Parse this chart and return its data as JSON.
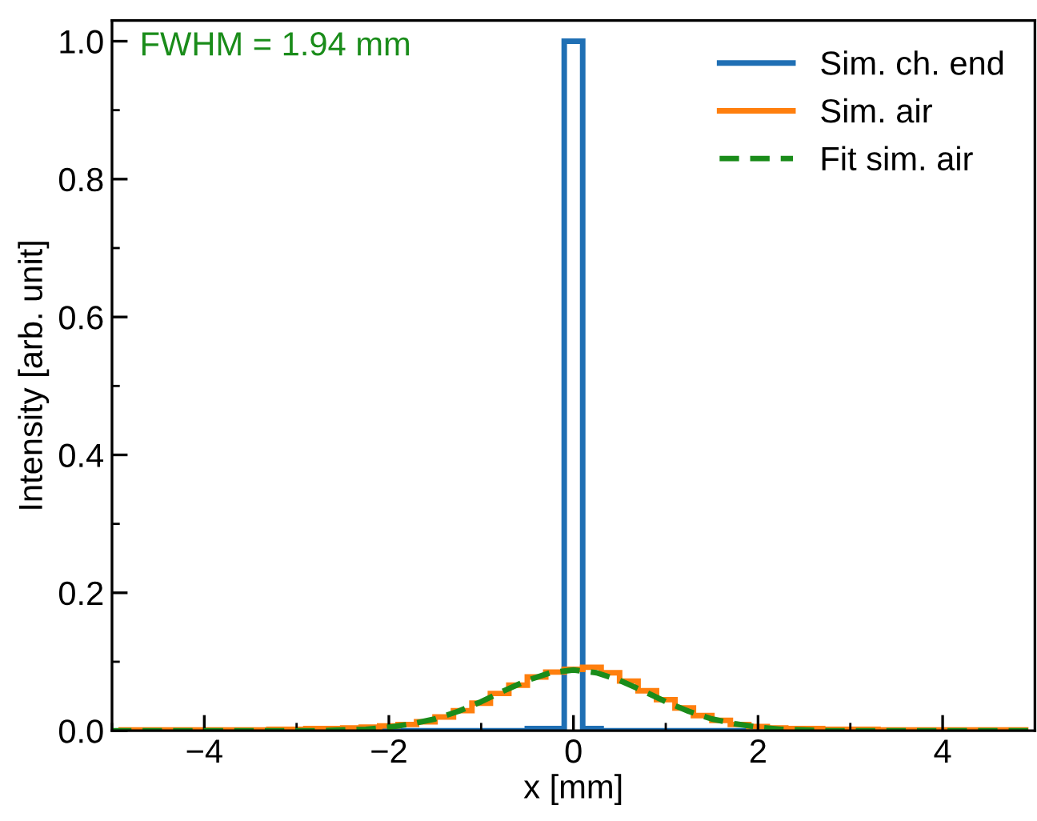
{
  "chart_data": {
    "type": "histogram",
    "xlabel": "x [mm]",
    "ylabel": "Intensity [arb. unit]",
    "bins": [
      -4.9,
      -4.7,
      -4.5,
      -4.3,
      -4.1,
      -3.9,
      -3.7,
      -3.5,
      -3.3,
      -3.1,
      -2.9,
      -2.7,
      -2.5,
      -2.3,
      -2.1,
      -1.9,
      -1.7,
      -1.5,
      -1.3,
      -1.1,
      -0.9,
      -0.7,
      -0.5,
      -0.3,
      -0.1,
      0.1,
      0.3,
      0.5,
      0.7,
      0.9,
      1.1,
      1.3,
      1.5,
      1.7,
      1.9,
      2.1,
      2.3,
      2.5,
      2.7,
      2.9,
      3.1,
      3.3,
      3.5,
      3.7,
      3.9,
      4.1,
      4.3,
      4.5,
      4.7,
      4.9
    ],
    "series": [
      {
        "name": "Sim. ch. end",
        "color": "#1f6fb4",
        "values": [
          0,
          0,
          0,
          0,
          0,
          0,
          0,
          0,
          0,
          0,
          0,
          0,
          0,
          0,
          0,
          0,
          0,
          0,
          0,
          0,
          0,
          0,
          0.003,
          0.003,
          1.0,
          0.003,
          0,
          0,
          0,
          0,
          0,
          0,
          0,
          0,
          0,
          0,
          0,
          0,
          0,
          0,
          0,
          0,
          0,
          0,
          0,
          0,
          0,
          0,
          0
        ]
      },
      {
        "name": "Sim. air",
        "color": "#ff7f0e",
        "values": [
          0.001,
          0.001,
          0.001,
          0.001,
          0.001,
          0.001,
          0.001,
          0.001,
          0.002,
          0.002,
          0.003,
          0.003,
          0.004,
          0.005,
          0.007,
          0.009,
          0.013,
          0.02,
          0.029,
          0.04,
          0.054,
          0.066,
          0.078,
          0.085,
          0.089,
          0.092,
          0.084,
          0.072,
          0.058,
          0.045,
          0.033,
          0.022,
          0.015,
          0.009,
          0.006,
          0.004,
          0.003,
          0.003,
          0.002,
          0.002,
          0.002,
          0.001,
          0.001,
          0.001,
          0.001,
          0.001,
          0.001,
          0.001,
          0.001
        ]
      },
      {
        "name": "Fit sim. air",
        "type": "line",
        "color": "#1a8c1a",
        "line_style": "dashed",
        "x": [
          -5,
          -4.75,
          -4.5,
          -4.25,
          -4,
          -3.75,
          -3.5,
          -3.25,
          -3,
          -2.75,
          -2.5,
          -2.25,
          -2,
          -1.75,
          -1.5,
          -1.25,
          -1,
          -0.75,
          -0.5,
          -0.25,
          0,
          0.25,
          0.5,
          0.75,
          1,
          1.25,
          1.5,
          1.75,
          2,
          2.25,
          2.5,
          2.75,
          3,
          3.25,
          3.5,
          3.75,
          4,
          4.25,
          4.5,
          4.75,
          5
        ],
        "values": [
          0,
          0,
          0,
          0,
          0,
          0,
          0,
          0,
          0,
          0,
          0.001,
          0.002,
          0.005,
          0.01,
          0.017,
          0.028,
          0.042,
          0.058,
          0.073,
          0.084,
          0.088,
          0.084,
          0.073,
          0.058,
          0.042,
          0.028,
          0.017,
          0.01,
          0.005,
          0.002,
          0.001,
          0,
          0,
          0,
          0,
          0,
          0,
          0,
          0,
          0,
          0
        ]
      }
    ],
    "xlim": [
      -5,
      5
    ],
    "xticks": [
      {
        "value": -4,
        "label": "−4"
      },
      {
        "value": -2,
        "label": "−2"
      },
      0,
      2,
      4
    ],
    "ylim": [
      0,
      1.03
    ],
    "yticks": [
      {
        "value": 0,
        "label": "0.0"
      },
      0.2,
      0.4,
      0.6,
      0.8,
      {
        "value": 1,
        "label": "1.0"
      }
    ],
    "annotations": [
      "FWHM = 1.94 mm"
    ],
    "legend": "top right",
    "grid": false
  }
}
